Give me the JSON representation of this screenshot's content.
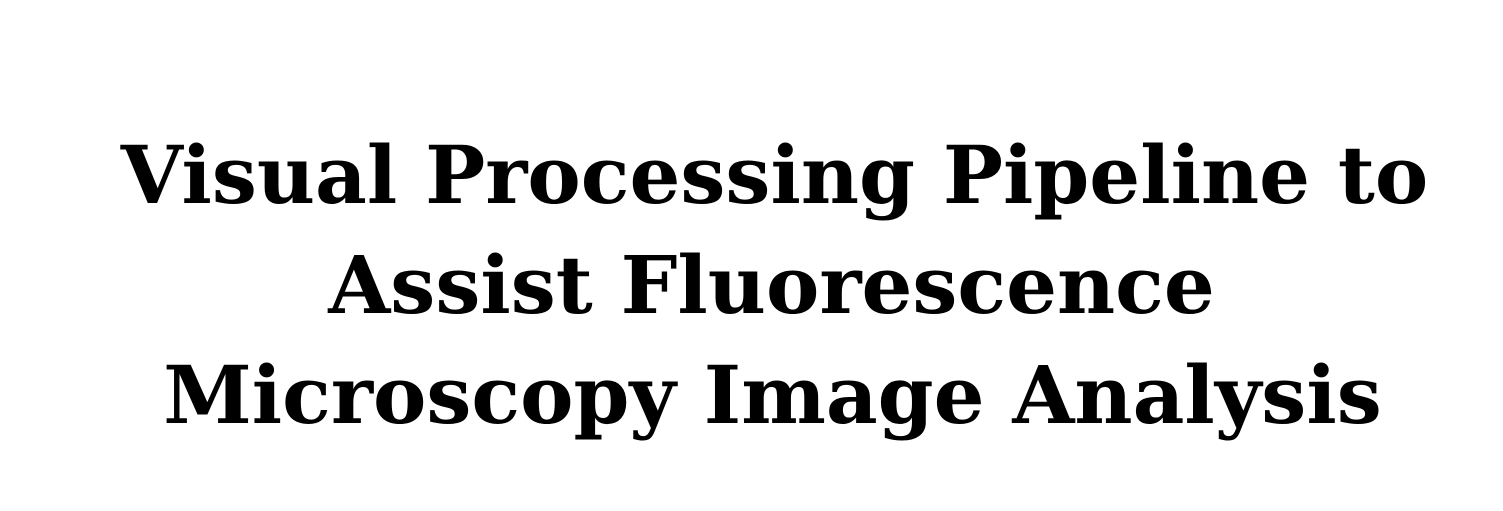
{
  "document": {
    "title_lines": [
      "Visual Processing Pipeline to",
      "Assist Fluorescence",
      "Microscopy Image Analysis"
    ]
  }
}
